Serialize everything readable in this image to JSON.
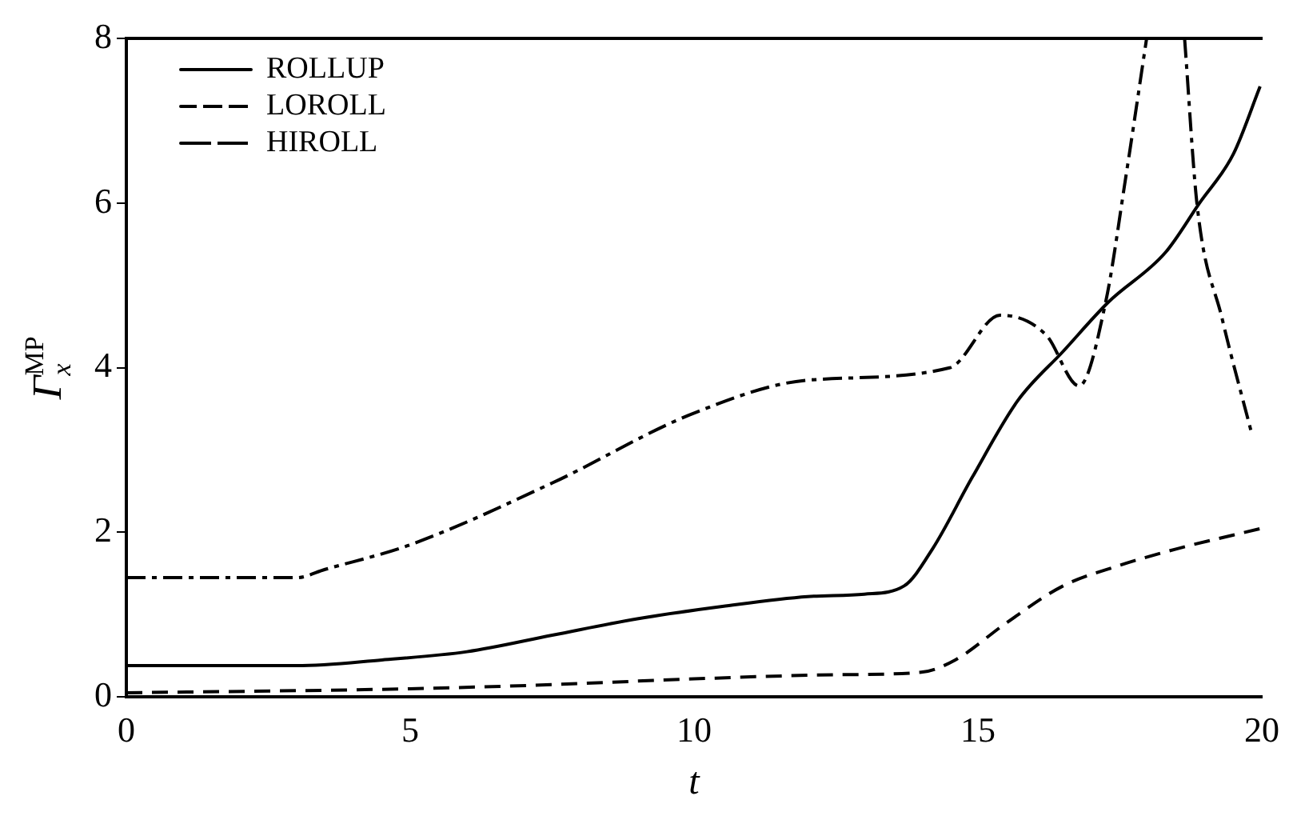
{
  "chart_data": {
    "type": "line",
    "xlabel": "t",
    "ylabel": "Γ$_{x}$$^{MP}$",
    "xlim": [
      0,
      20
    ],
    "xticks": [
      0,
      5,
      10,
      15,
      20
    ],
    "ylim": [
      0,
      8
    ],
    "yticks": [
      0,
      2,
      4,
      6,
      8
    ],
    "grid": false,
    "legend": "top left",
    "marker": "none",
    "series": [
      {
        "name": "ROLLUP",
        "color": "#000000",
        "line_style": "solid",
        "x": [
          0,
          3,
          4.5,
          6,
          7.5,
          9,
          10.5,
          12,
          13,
          13.7,
          14.2,
          14.9,
          15.7,
          16.5,
          17.3,
          18.3,
          18.9,
          19.5,
          19.97
        ],
        "values": [
          0.38,
          0.38,
          0.45,
          0.55,
          0.75,
          0.95,
          1.1,
          1.22,
          1.25,
          1.35,
          1.8,
          2.67,
          3.6,
          4.2,
          4.8,
          5.4,
          6.0,
          6.6,
          7.42
        ]
      },
      {
        "name": "LOROLL",
        "color": "#000000",
        "line_style": "dashed",
        "x": [
          0,
          5,
          7.5,
          10,
          12.5,
          14,
          14.6,
          15.5,
          16.5,
          17.5,
          18.5,
          20
        ],
        "values": [
          0.05,
          0.1,
          0.15,
          0.22,
          0.27,
          0.3,
          0.45,
          0.9,
          1.35,
          1.6,
          1.8,
          2.05
        ]
      },
      {
        "name": "HIROLL",
        "color": "#000000",
        "line_style": "dashdot",
        "x": [
          0,
          3,
          3.5,
          5,
          7.5,
          10,
          12,
          14.5,
          15.39,
          16.2,
          16.78,
          17.25,
          17.6,
          17.97,
          18.3,
          18.64,
          18.86,
          19.3,
          19.83
        ],
        "values": [
          1.45,
          1.45,
          1.55,
          1.85,
          2.6,
          3.45,
          3.85,
          4.0,
          4.64,
          4.4,
          3.78,
          4.8,
          6.3,
          8,
          null,
          8,
          5.98,
          4.6,
          3.18
        ]
      }
    ]
  }
}
